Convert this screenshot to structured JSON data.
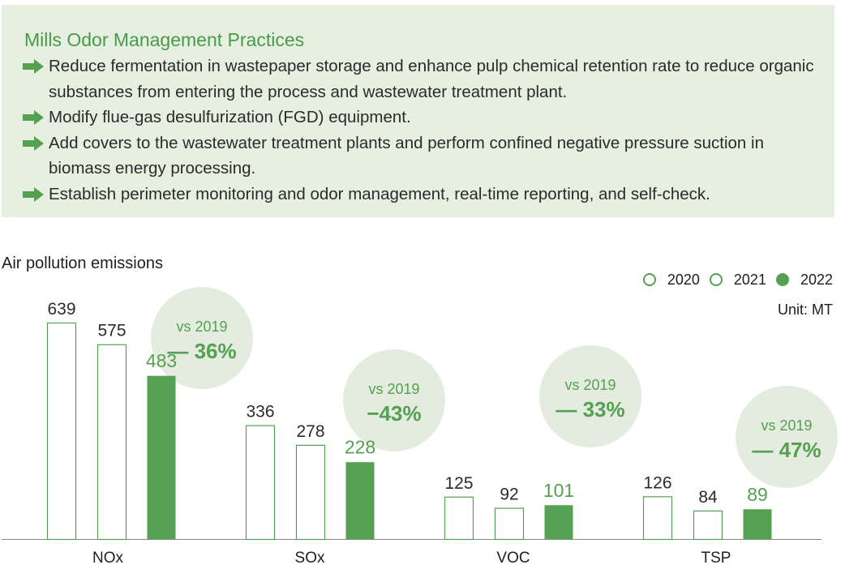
{
  "practices": {
    "title": "Mills Odor Management Practices",
    "items": [
      "Reduce fermentation in wastepaper storage and enhance pulp chemical retention rate to reduce organic substances from entering the process and wastewater treatment plant.",
      "Modify flue-gas desulfurization (FGD) equipment.",
      "Add covers to the wastewater treatment plants and perform confined negative pressure suction in biomass energy processing.",
      "Establish perimeter monitoring and odor management, real-time reporting, and self-check."
    ]
  },
  "colors": {
    "accent": "#55a052",
    "panel_bg": "#e6efe0",
    "bubble_bg": "#e3ecde"
  },
  "chart_data": {
    "type": "bar",
    "title": "Air pollution emissions",
    "unit_label": "Unit: MT",
    "legend_position": "top-right",
    "categories": [
      "NOx",
      "SOx",
      "VOC",
      "TSP"
    ],
    "series": [
      {
        "name": "2020",
        "values": [
          639,
          336,
          125,
          126
        ],
        "style": "outline"
      },
      {
        "name": "2021",
        "values": [
          575,
          278,
          92,
          84
        ],
        "style": "outline"
      },
      {
        "name": "2022",
        "values": [
          483,
          228,
          101,
          89
        ],
        "style": "filled"
      }
    ],
    "comparisons": [
      {
        "label": "vs 2019",
        "value": "— 36%"
      },
      {
        "label": "vs 2019",
        "value": "−43%"
      },
      {
        "label": "vs 2019",
        "value": "— 33%"
      },
      {
        "label": "vs 2019",
        "value": "— 47%"
      }
    ],
    "ylim": [
      0,
      639
    ],
    "grid": false
  }
}
